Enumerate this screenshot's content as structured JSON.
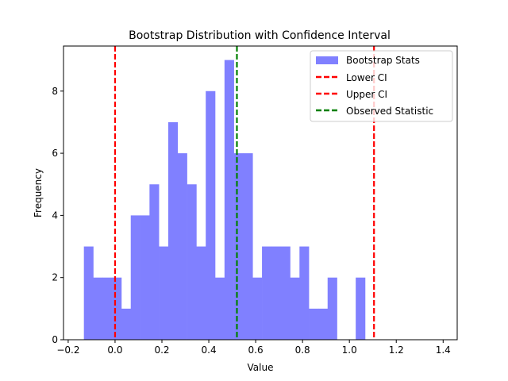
{
  "chart_data": {
    "type": "bar",
    "title": "Bootstrap Distribution with Confidence Interval",
    "xlabel": "Value",
    "ylabel": "Frequency",
    "xlim": [
      -0.22,
      1.46
    ],
    "ylim": [
      0,
      9.45
    ],
    "xticks": [
      -0.2,
      0.0,
      0.2,
      0.4,
      0.6,
      0.8,
      1.0,
      1.2,
      1.4
    ],
    "xtick_labels": [
      "−0.2",
      "0.0",
      "0.2",
      "0.4",
      "0.6",
      "0.8",
      "1.0",
      "1.2",
      "1.4"
    ],
    "yticks": [
      0,
      2,
      4,
      6,
      8
    ],
    "ytick_labels": [
      "0",
      "2",
      "4",
      "6",
      "8"
    ],
    "grid": false,
    "legend_position": "top-right",
    "histogram": {
      "name": "Bootstrap Stats",
      "color": "#8080ff",
      "bin_start": -0.133,
      "bin_width": 0.04,
      "counts": [
        3,
        2,
        2,
        2,
        1,
        4,
        4,
        5,
        3,
        7,
        6,
        5,
        3,
        8,
        2,
        9,
        6,
        6,
        2,
        3,
        3,
        3,
        2,
        3,
        1,
        1,
        2,
        0,
        0,
        2
      ]
    },
    "lines": [
      {
        "name": "Lower CI",
        "x": 0.0,
        "color": "#ff0000",
        "style": "dashed"
      },
      {
        "name": "Upper CI",
        "x": 1.105,
        "color": "#ff0000",
        "style": "dashed"
      },
      {
        "name": "Observed Statistic",
        "x": 0.52,
        "color": "#008000",
        "style": "dashed"
      }
    ]
  }
}
